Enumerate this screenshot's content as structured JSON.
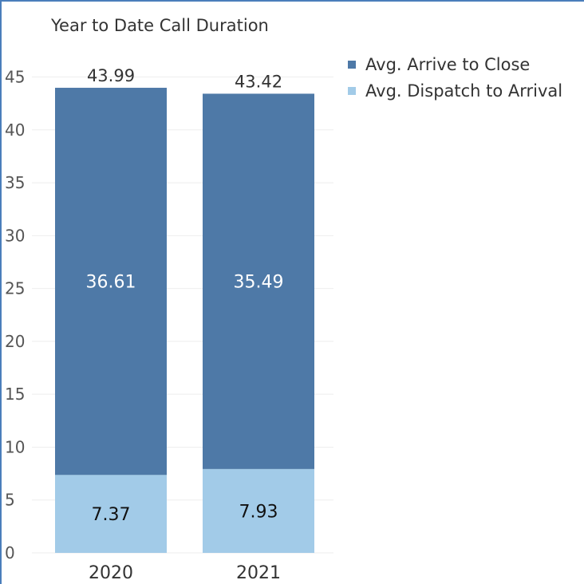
{
  "chart_data": {
    "type": "bar",
    "stacked": true,
    "title": "Year to Date Call Duration",
    "categories": [
      "2020",
      "2021"
    ],
    "series": [
      {
        "name": "Avg. Dispatch to Arrival",
        "values": [
          7.37,
          7.93
        ],
        "color": "#a2cbe8",
        "label_color": "#111111"
      },
      {
        "name": "Avg. Arrive to Close",
        "values": [
          36.61,
          35.49
        ],
        "color": "#4e79a7",
        "label_color": "#ffffff"
      }
    ],
    "totals": [
      "43.99",
      "43.42"
    ],
    "segment_labels": [
      [
        "7.37",
        "7.93"
      ],
      [
        "36.61",
        "35.49"
      ]
    ],
    "yticks": [
      0,
      5,
      10,
      15,
      20,
      25,
      30,
      35,
      40,
      45
    ],
    "ylim": [
      0,
      47
    ],
    "xlabel": "",
    "ylabel": "",
    "legend_position": "top-right",
    "grid": true
  },
  "legend": [
    {
      "label": "Avg. Arrive to Close",
      "color": "#4e79a7"
    },
    {
      "label": "Avg. Dispatch to Arrival",
      "color": "#a2cbe8"
    }
  ]
}
